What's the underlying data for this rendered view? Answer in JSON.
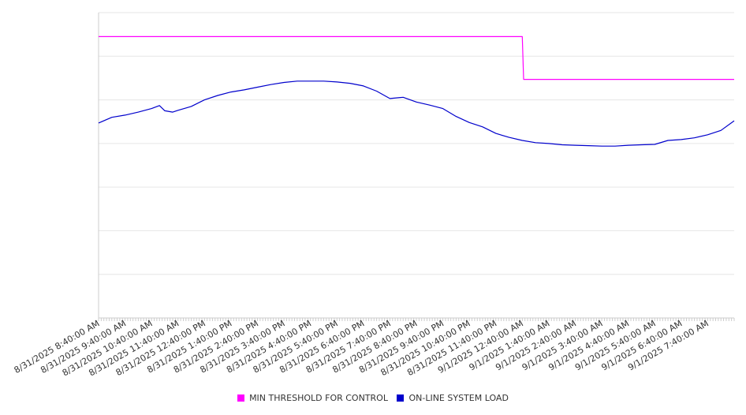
{
  "chart_data": {
    "type": "line",
    "title": "",
    "xlabel": "",
    "ylabel": "",
    "grid": true,
    "legend_position": "bottom-center",
    "x_tick_labels": [
      "8/31/2025 8:40:00 AM",
      "8/31/2025 9:40:00 AM",
      "8/31/2025 10:40:00 AM",
      "8/31/2025 11:40:00 AM",
      "8/31/2025 12:40:00 PM",
      "8/31/2025 1:40:00 PM",
      "8/31/2025 2:40:00 PM",
      "8/31/2025 3:40:00 PM",
      "8/31/2025 4:40:00 PM",
      "8/31/2025 5:40:00 PM",
      "8/31/2025 6:40:00 PM",
      "8/31/2025 7:40:00 PM",
      "8/31/2025 8:40:00 PM",
      "8/31/2025 9:40:00 PM",
      "8/31/2025 10:40:00 PM",
      "8/31/2025 11:40:00 PM",
      "9/1/2025 12:40:00 AM",
      "9/1/2025 1:40:00 AM",
      "9/1/2025 2:40:00 AM",
      "9/1/2025 3:40:00 AM",
      "9/1/2025 4:40:00 AM",
      "9/1/2025 5:40:00 AM",
      "9/1/2025 6:40:00 AM",
      "9/1/2025 7:40:00 AM"
    ],
    "x_hours_span": 24,
    "y_lines": 7,
    "series": [
      {
        "name": "MIN THRESHOLD FOR CONTROL",
        "color": "#ff00ff",
        "x_hours": [
          0,
          16.0,
          16.05,
          24
        ],
        "y_gridunits": [
          6.45,
          6.45,
          5.47,
          5.47
        ]
      },
      {
        "name": "ON-LINE SYSTEM LOAD",
        "color": "#0000cc",
        "x_hours": [
          0,
          0.5,
          1,
          1.5,
          2,
          2.3,
          2.5,
          2.8,
          3,
          3.5,
          4,
          4.5,
          5,
          5.5,
          6,
          6.5,
          7,
          7.5,
          8,
          8.5,
          9,
          9.5,
          10,
          10.5,
          11,
          11.5,
          12,
          12.5,
          13,
          13.5,
          14,
          14.5,
          15,
          15.5,
          16,
          16.5,
          17,
          17.5,
          18,
          18.5,
          19,
          19.5,
          20,
          20.5,
          21,
          21.5,
          22,
          22.5,
          23,
          23.5,
          24
        ],
        "y_gridunits": [
          4.47,
          4.6,
          4.65,
          4.72,
          4.8,
          4.87,
          4.75,
          4.72,
          4.76,
          4.85,
          5.0,
          5.1,
          5.18,
          5.23,
          5.29,
          5.35,
          5.4,
          5.43,
          5.43,
          5.43,
          5.41,
          5.38,
          5.32,
          5.2,
          5.03,
          5.06,
          4.95,
          4.88,
          4.8,
          4.62,
          4.48,
          4.38,
          4.23,
          4.14,
          4.07,
          4.02,
          4.0,
          3.97,
          3.96,
          3.95,
          3.94,
          3.94,
          3.96,
          3.97,
          3.98,
          4.07,
          4.09,
          4.13,
          4.2,
          4.3,
          4.52
        ]
      }
    ]
  }
}
